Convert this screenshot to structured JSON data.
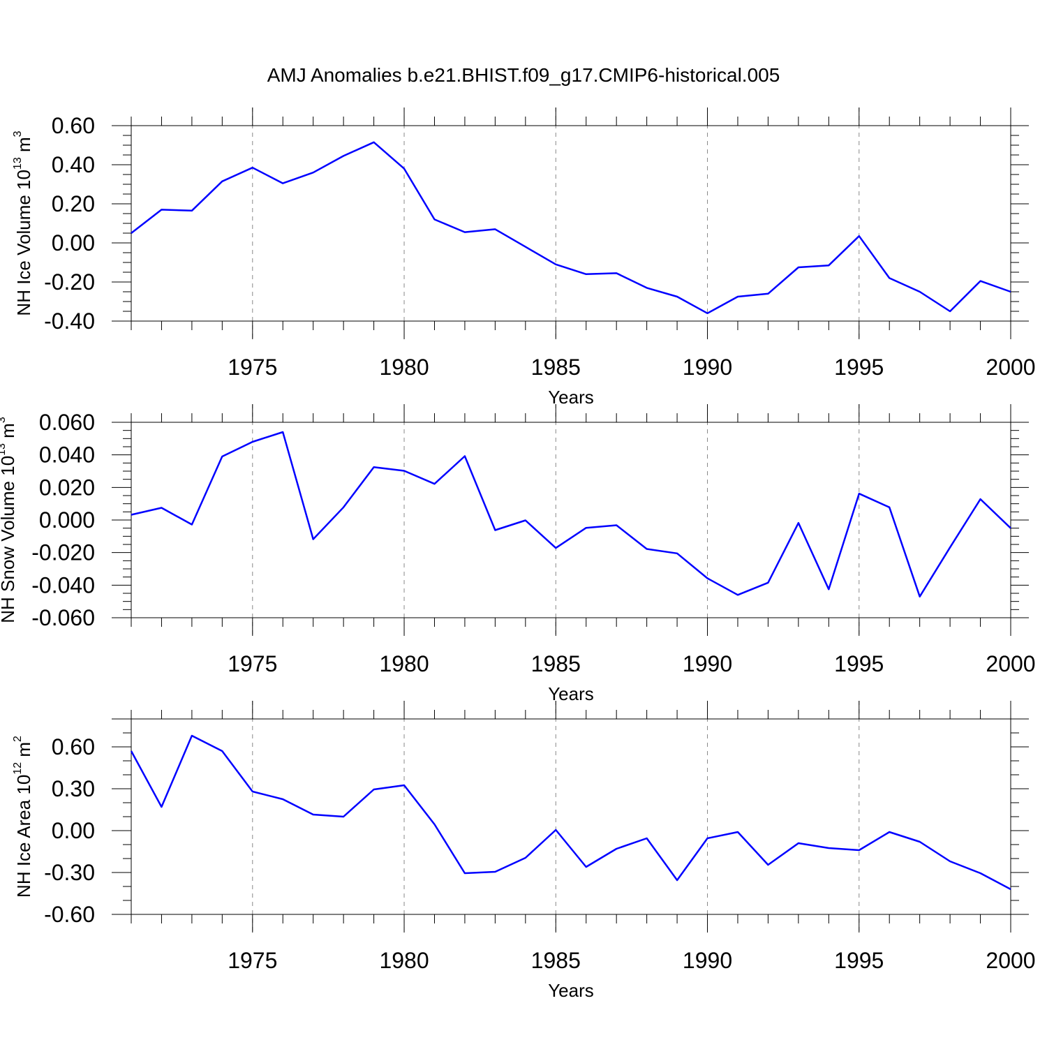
{
  "figure": {
    "title": "AMJ Anomalies b.e21.BHIST.f09_g17.CMIP6-historical.005"
  },
  "chart_data": [
    {
      "type": "line",
      "xlabel": "Years",
      "ylabel": {
        "pre": "NH Ice Volume 10",
        "exp": "13",
        "mid": " m",
        "exp2": "3"
      },
      "xlim": [
        1971,
        2000
      ],
      "ylim": [
        -0.4,
        0.6
      ],
      "yticks": [
        0.6,
        0.4,
        0.2,
        0.0,
        -0.2,
        -0.4
      ],
      "ytick_labels": [
        "0.60",
        "0.40",
        "0.20",
        "0.00",
        "-0.20",
        "-0.40"
      ],
      "yminor": [
        0.55,
        0.5,
        0.45,
        0.35,
        0.3,
        0.25,
        0.15,
        0.1,
        0.05,
        -0.05,
        -0.1,
        -0.15,
        -0.25,
        -0.3,
        -0.35
      ],
      "xticks": [
        1975,
        1980,
        1985,
        1990,
        1995,
        2000
      ],
      "xtick_labels": [
        "1975",
        "1980",
        "1985",
        "1990",
        "1995",
        "2000"
      ],
      "grid_x": [
        1975,
        1980,
        1985,
        1990,
        1995
      ],
      "color": "#0000ff",
      "x": [
        1971,
        1972,
        1973,
        1974,
        1975,
        1976,
        1977,
        1978,
        1979,
        1980,
        1981,
        1982,
        1983,
        1984,
        1985,
        1986,
        1987,
        1988,
        1989,
        1990,
        1991,
        1992,
        1993,
        1994,
        1995,
        1996,
        1997,
        1998,
        1999,
        2000
      ],
      "y": [
        0.05,
        0.17,
        0.165,
        0.315,
        0.385,
        0.305,
        0.36,
        0.445,
        0.515,
        0.38,
        0.12,
        0.055,
        0.07,
        -0.02,
        -0.11,
        -0.16,
        -0.155,
        -0.23,
        -0.275,
        -0.36,
        -0.275,
        -0.26,
        -0.125,
        -0.115,
        0.035,
        -0.18,
        -0.25,
        -0.35,
        -0.195,
        -0.25
      ]
    },
    {
      "type": "line",
      "xlabel": "Years",
      "ylabel": {
        "pre": "NH Snow Volume 10",
        "exp": "13",
        "mid": " m",
        "exp2": "3"
      },
      "xlim": [
        1971,
        2000
      ],
      "ylim": [
        -0.06,
        0.06
      ],
      "yticks": [
        0.06,
        0.04,
        0.02,
        0.0,
        -0.02,
        -0.04,
        -0.06
      ],
      "ytick_labels": [
        "0.060",
        "0.040",
        "0.020",
        "0.000",
        "-0.020",
        "-0.040",
        "-0.060"
      ],
      "yminor": [
        0.055,
        0.05,
        0.045,
        0.035,
        0.03,
        0.025,
        0.015,
        0.01,
        0.005,
        -0.005,
        -0.01,
        -0.015,
        -0.025,
        -0.03,
        -0.035,
        -0.045,
        -0.05,
        -0.055
      ],
      "xticks": [
        1975,
        1980,
        1985,
        1990,
        1995,
        2000
      ],
      "xtick_labels": [
        "1975",
        "1980",
        "1985",
        "1990",
        "1995",
        "2000"
      ],
      "grid_x": [
        1975,
        1980,
        1985,
        1990,
        1995
      ],
      "color": "#0000ff",
      "x": [
        1971,
        1972,
        1973,
        1974,
        1975,
        1976,
        1977,
        1978,
        1979,
        1980,
        1981,
        1982,
        1983,
        1984,
        1985,
        1986,
        1987,
        1988,
        1989,
        1990,
        1991,
        1992,
        1993,
        1994,
        1995,
        1996,
        1997,
        1998,
        1999,
        2000
      ],
      "y": [
        0.0032,
        0.0075,
        -0.0028,
        0.039,
        0.048,
        0.054,
        -0.0118,
        0.0078,
        0.0325,
        0.0302,
        0.0222,
        0.0392,
        -0.0062,
        -0.0002,
        -0.0172,
        -0.0048,
        -0.0032,
        -0.0178,
        -0.0205,
        -0.0358,
        -0.046,
        -0.0385,
        -0.0018,
        -0.0425,
        0.0162,
        0.0078,
        -0.047,
        -0.0168,
        0.0128,
        -0.005
      ]
    },
    {
      "type": "line",
      "xlabel": "Years",
      "ylabel": {
        "pre": "NH Ice Area 10",
        "exp": "12",
        "mid": " m",
        "exp2": "2"
      },
      "xlim": [
        1971,
        2000
      ],
      "ylim": [
        -0.6,
        0.8
      ],
      "yticks": [
        0.6,
        0.3,
        0.0,
        -0.3,
        -0.6
      ],
      "ytick_labels": [
        "0.60",
        "0.30",
        "0.00",
        "-0.30",
        "-0.60"
      ],
      "yminor": [
        0.8,
        0.7,
        0.5,
        0.4,
        0.2,
        0.1,
        -0.1,
        -0.2,
        -0.4,
        -0.5
      ],
      "xticks": [
        1975,
        1980,
        1985,
        1990,
        1995,
        2000
      ],
      "xtick_labels": [
        "1975",
        "1980",
        "1985",
        "1990",
        "1995",
        "2000"
      ],
      "grid_x": [
        1975,
        1980,
        1985,
        1990,
        1995
      ],
      "color": "#0000ff",
      "x": [
        1971,
        1972,
        1973,
        1974,
        1975,
        1976,
        1977,
        1978,
        1979,
        1980,
        1981,
        1982,
        1983,
        1984,
        1985,
        1986,
        1987,
        1988,
        1989,
        1990,
        1991,
        1992,
        1993,
        1994,
        1995,
        1996,
        1997,
        1998,
        1999,
        2000
      ],
      "y": [
        0.57,
        0.17,
        0.68,
        0.57,
        0.28,
        0.225,
        0.115,
        0.1,
        0.295,
        0.325,
        0.045,
        -0.305,
        -0.295,
        -0.195,
        0.005,
        -0.26,
        -0.13,
        -0.055,
        -0.355,
        -0.055,
        -0.01,
        -0.245,
        -0.09,
        -0.125,
        -0.14,
        -0.01,
        -0.08,
        -0.22,
        -0.305,
        -0.42
      ]
    }
  ]
}
